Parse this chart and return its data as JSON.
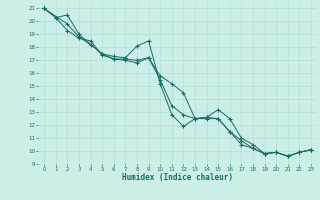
{
  "xlabel": "Humidex (Indice chaleur)",
  "bg_color": "#cceee8",
  "line_color": "#1a6b60",
  "grid_color": "#aaddcc",
  "xlim": [
    -0.5,
    23.5
  ],
  "ylim": [
    9,
    21.5
  ],
  "xticks": [
    0,
    1,
    2,
    3,
    4,
    5,
    6,
    7,
    8,
    9,
    10,
    11,
    12,
    13,
    14,
    15,
    16,
    17,
    18,
    19,
    20,
    21,
    22,
    23
  ],
  "yticks": [
    9,
    10,
    11,
    12,
    13,
    14,
    15,
    16,
    17,
    18,
    19,
    20,
    21
  ],
  "line1_x": [
    0,
    1,
    2,
    3,
    5,
    6,
    7,
    8,
    9,
    10,
    11,
    12,
    13,
    14,
    15,
    16,
    17,
    18,
    19,
    20,
    21,
    22,
    23
  ],
  "line1_y": [
    21,
    20.3,
    20.5,
    19.0,
    17.5,
    17.3,
    17.2,
    18.1,
    18.5,
    15.2,
    12.8,
    11.9,
    12.5,
    12.6,
    13.2,
    12.5,
    11.0,
    10.5,
    9.8,
    9.9,
    9.6,
    9.9,
    10.1
  ],
  "line2_x": [
    0,
    1,
    2,
    3,
    4,
    5,
    6,
    7,
    8,
    9,
    10,
    11,
    12,
    13,
    14,
    15,
    16,
    17,
    18,
    19,
    20,
    21,
    22,
    23
  ],
  "line2_y": [
    21,
    20.3,
    19.3,
    18.7,
    18.5,
    17.4,
    17.1,
    17.1,
    17.0,
    17.2,
    15.8,
    15.2,
    14.5,
    12.5,
    12.6,
    12.5,
    11.5,
    10.8,
    10.2,
    9.8,
    9.9,
    9.6,
    9.9,
    10.1
  ],
  "line3_x": [
    0,
    2,
    3,
    4,
    5,
    6,
    7,
    8,
    9,
    10,
    11,
    12,
    13,
    14,
    15,
    16,
    17,
    18,
    19,
    20,
    21,
    22,
    23
  ],
  "line3_y": [
    21,
    19.8,
    18.8,
    18.2,
    17.5,
    17.1,
    17.0,
    16.8,
    17.2,
    15.5,
    13.5,
    12.8,
    12.5,
    12.5,
    12.5,
    11.5,
    10.5,
    10.2,
    9.8,
    9.9,
    9.6,
    9.9,
    10.1
  ]
}
